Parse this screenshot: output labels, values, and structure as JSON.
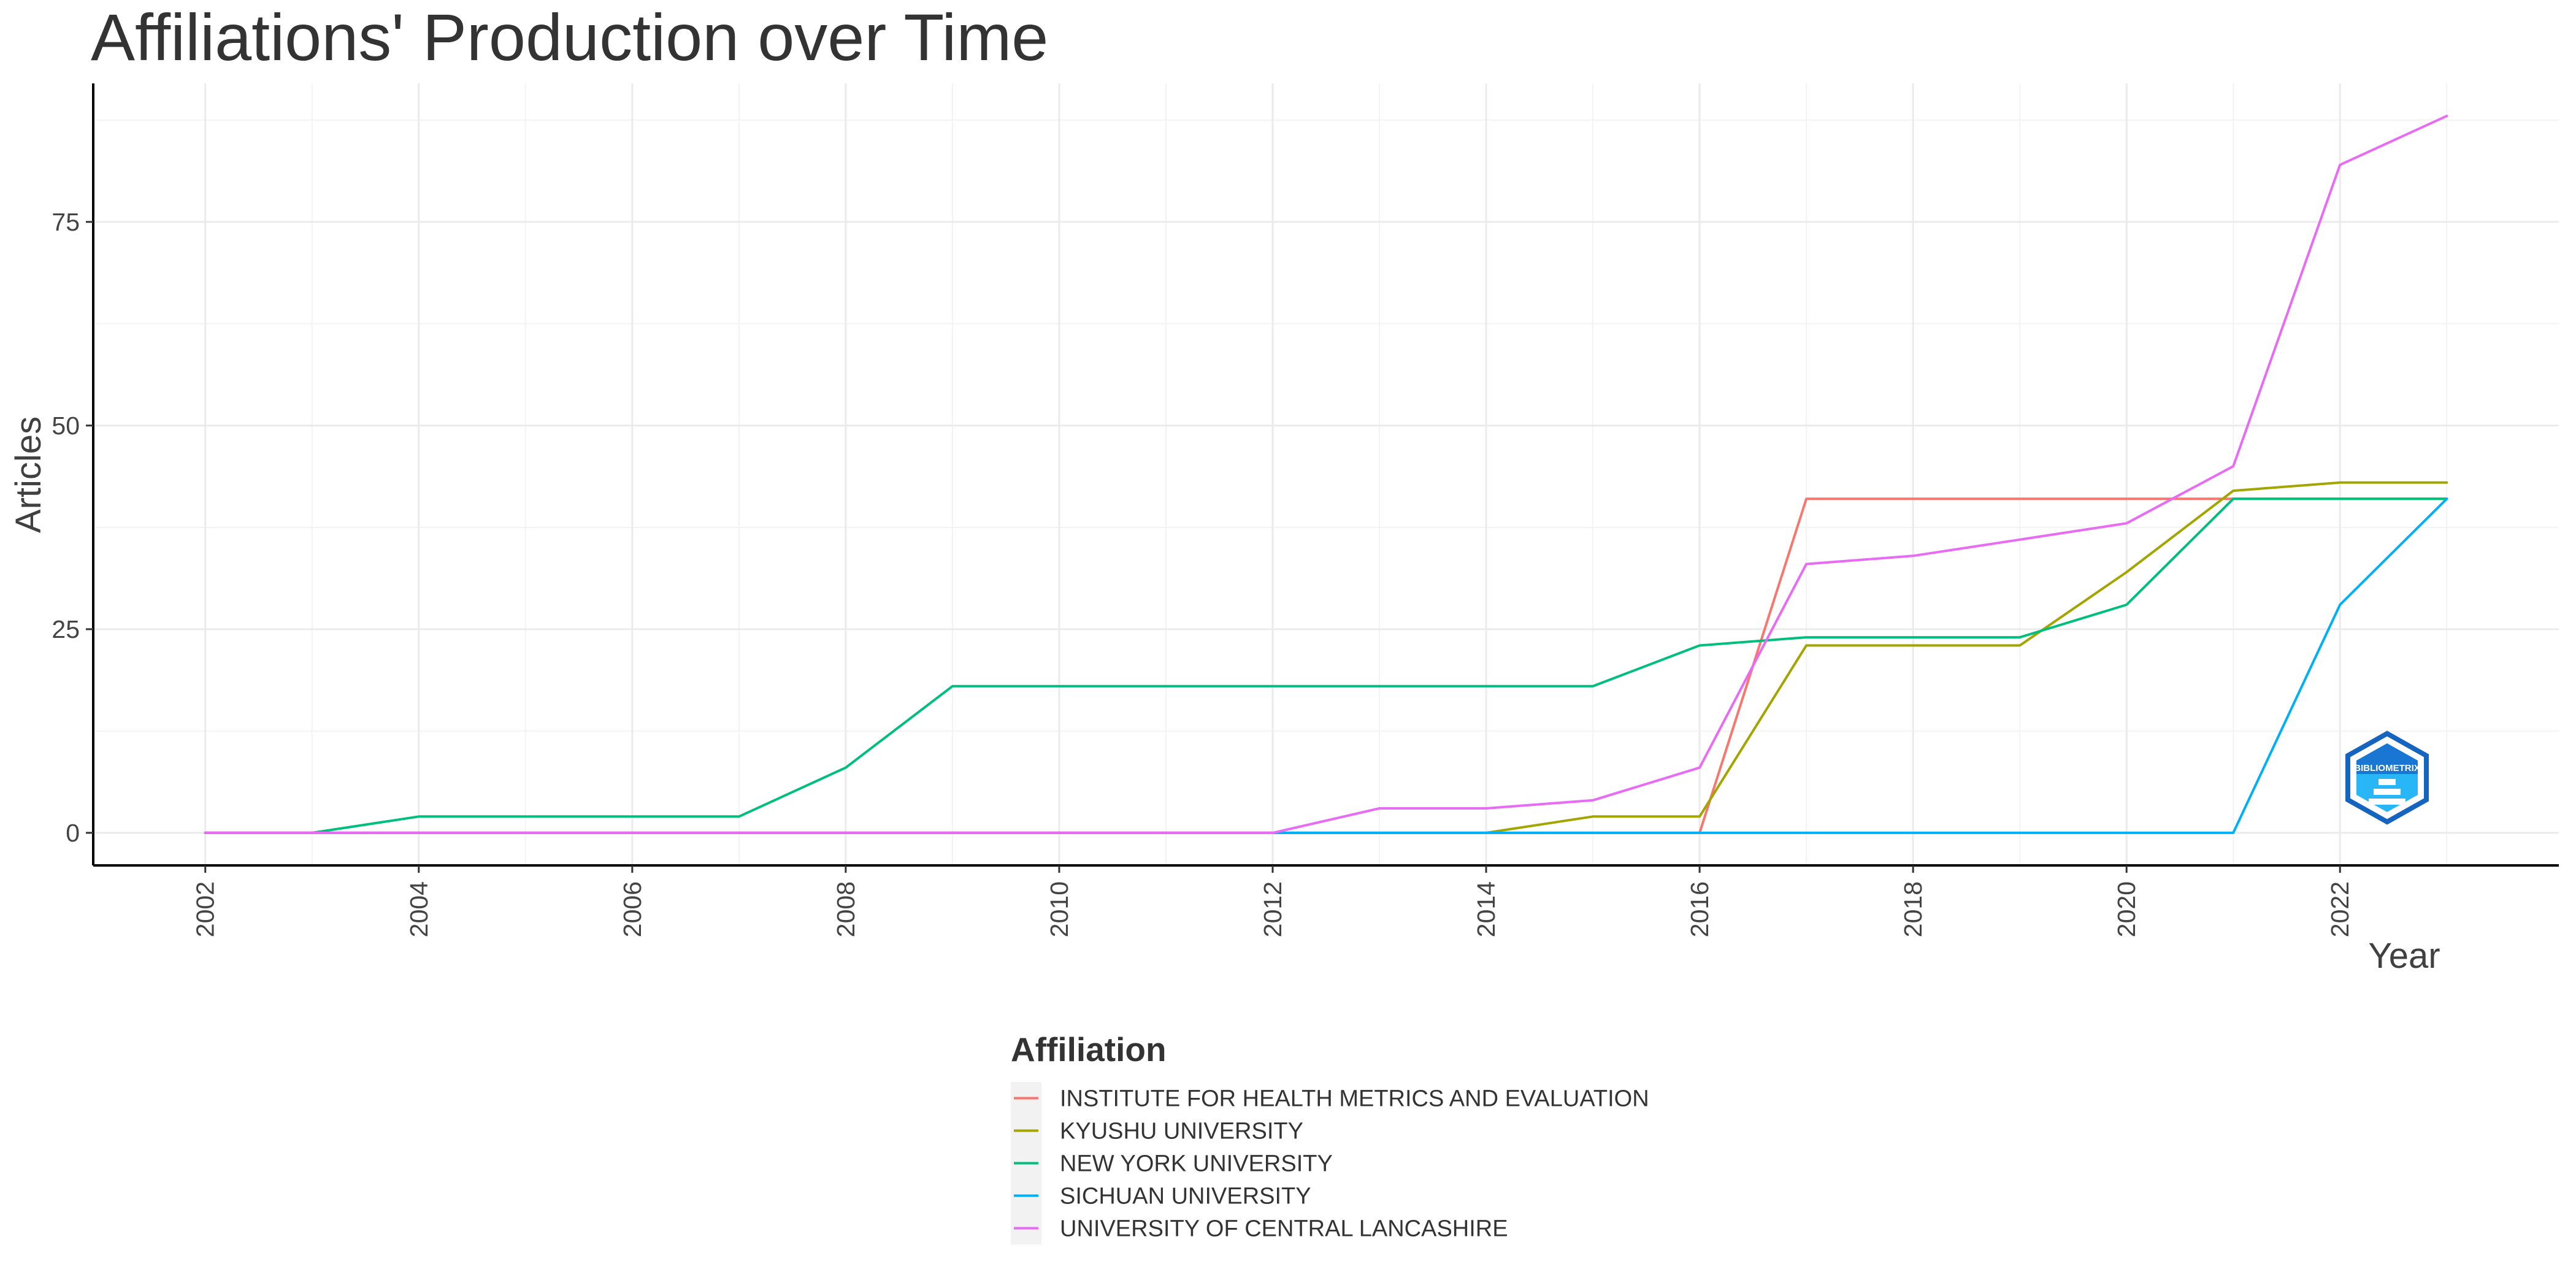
{
  "chart_data": {
    "type": "line",
    "title": "Affiliations' Production over Time",
    "xlabel": "Year",
    "ylabel": "Articles",
    "x": [
      2002,
      2003,
      2004,
      2005,
      2006,
      2007,
      2008,
      2009,
      2010,
      2011,
      2012,
      2013,
      2014,
      2015,
      2016,
      2017,
      2018,
      2019,
      2020,
      2021,
      2022,
      2023
    ],
    "x_ticks": [
      "2002",
      "2004",
      "2006",
      "2008",
      "2010",
      "2012",
      "2014",
      "2016",
      "2018",
      "2020",
      "2022"
    ],
    "y_ticks": [
      "0",
      "25",
      "50",
      "75"
    ],
    "ylim": [
      -4,
      92
    ],
    "xlim": [
      2000.95,
      2024.05
    ],
    "grid": true,
    "legend": {
      "title": "Affiliation",
      "placement": "bottom"
    },
    "series": [
      {
        "name": "INSTITUTE FOR HEALTH METRICS AND EVALUATION",
        "color": "#F8766D",
        "values": [
          0,
          0,
          0,
          0,
          0,
          0,
          0,
          0,
          0,
          0,
          0,
          0,
          0,
          0,
          0,
          41,
          41,
          41,
          41,
          41,
          41,
          41
        ]
      },
      {
        "name": "KYUSHU UNIVERSITY",
        "color": "#A3A500",
        "values": [
          0,
          0,
          0,
          0,
          0,
          0,
          0,
          0,
          0,
          0,
          0,
          0,
          0,
          2,
          2,
          23,
          23,
          23,
          32,
          42,
          43,
          43
        ]
      },
      {
        "name": "NEW YORK UNIVERSITY",
        "color": "#00BF7D",
        "values": [
          0,
          0,
          2,
          2,
          2,
          2,
          8,
          18,
          18,
          18,
          18,
          18,
          18,
          18,
          23,
          24,
          24,
          24,
          28,
          41,
          41,
          41
        ]
      },
      {
        "name": "SICHUAN UNIVERSITY",
        "color": "#00B0F6",
        "values": [
          0,
          0,
          0,
          0,
          0,
          0,
          0,
          0,
          0,
          0,
          0,
          0,
          0,
          0,
          0,
          0,
          0,
          0,
          0,
          0,
          28,
          41
        ]
      },
      {
        "name": "UNIVERSITY OF CENTRAL LANCASHIRE",
        "color": "#E76BF3",
        "values": [
          0,
          0,
          0,
          0,
          0,
          0,
          0,
          0,
          0,
          0,
          0,
          3,
          3,
          4,
          8,
          33,
          34,
          36,
          38,
          45,
          82,
          88
        ]
      }
    ]
  },
  "logo": {
    "text": "BIBLIOMETRIX",
    "colors": [
      "#1565c0",
      "#29b6f6"
    ]
  }
}
